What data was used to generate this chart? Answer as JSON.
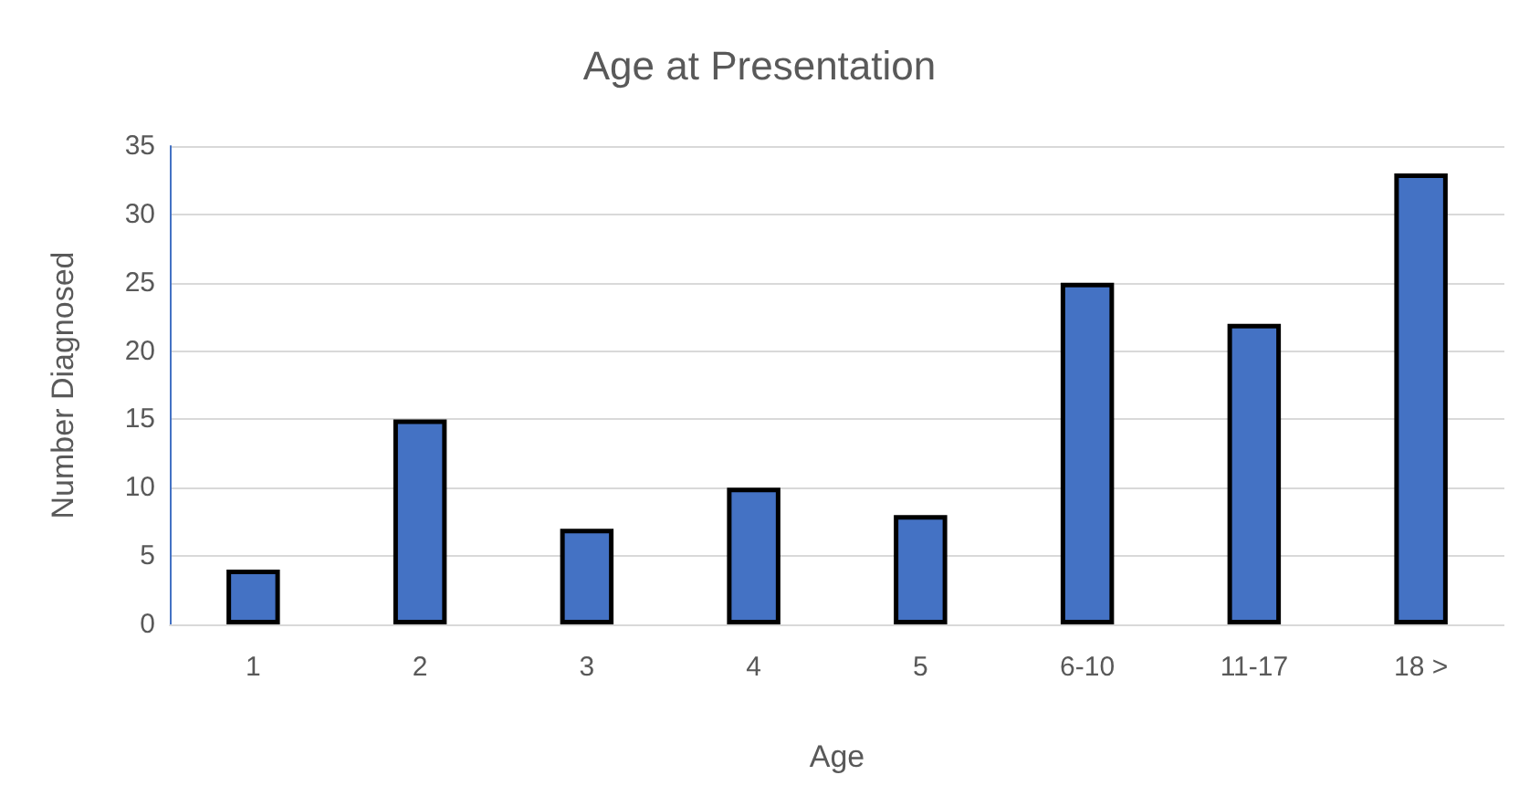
{
  "chart_data": {
    "type": "bar",
    "title": "Age at Presentation",
    "xlabel": "Age",
    "ylabel": "Number Diagnosed",
    "categories": [
      "1",
      "2",
      "3",
      "4",
      "5",
      "6-10",
      "11-17",
      "18 >"
    ],
    "values": [
      4,
      15,
      7,
      10,
      8,
      25,
      22,
      33
    ],
    "color": "#4472c4",
    "ylim": [
      0,
      35
    ],
    "yticks": [
      0,
      5,
      10,
      15,
      20,
      25,
      30,
      35
    ],
    "grid": "y"
  }
}
